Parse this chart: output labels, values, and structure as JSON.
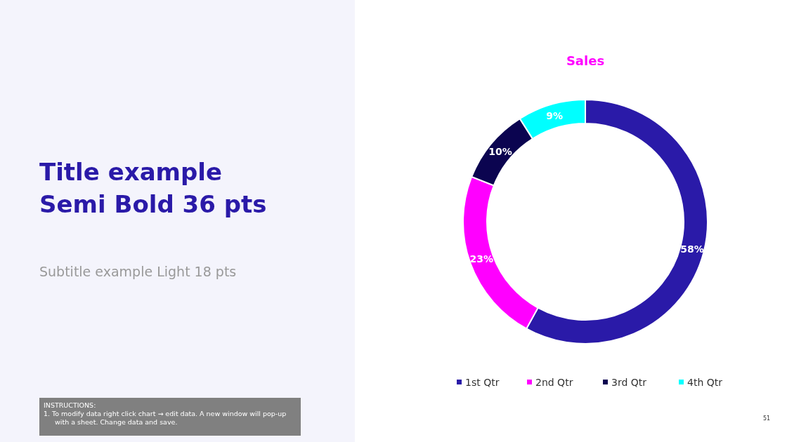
{
  "chart_data": {
    "type": "donut",
    "title": "Sales",
    "categories": [
      "1st Qtr",
      "2nd Qtr",
      "3rd Qtr",
      "4th Qtr"
    ],
    "values": [
      58,
      23,
      10,
      9
    ],
    "colors": [
      "#2a1aa8",
      "#ff00ff",
      "#0b0450",
      "#00ffff"
    ],
    "value_labels": [
      "58%",
      "23%",
      "10%",
      "9%"
    ],
    "legend": "bottom",
    "annotations": [
      "Title example Semi Bold 36 pts",
      "Subtitle example Light 18 pts",
      "INSTRUCTIONS:",
      "1.    To modify data right click chart → edit data. A new window will pop-up with a sheet. Change data and save.",
      "51"
    ]
  }
}
